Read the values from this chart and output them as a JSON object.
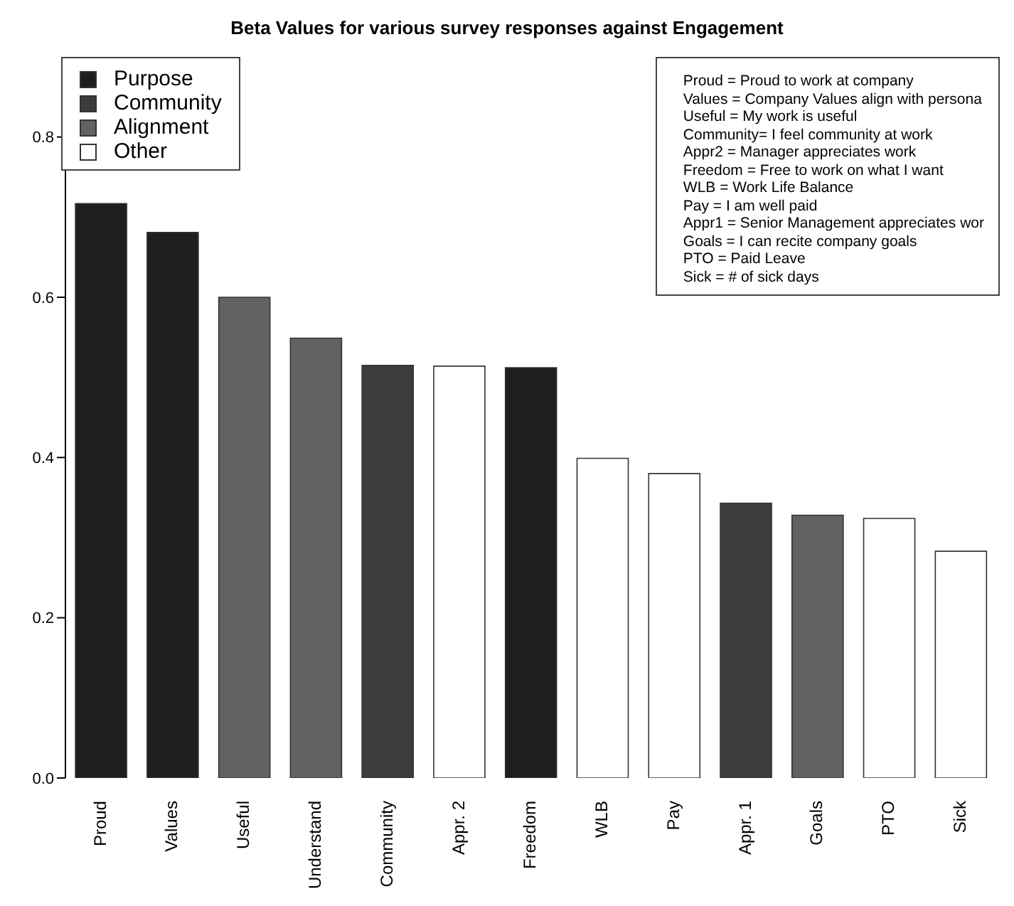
{
  "chart_data": {
    "type": "bar",
    "title": "Beta Values for various survey responses against Engagement",
    "categories": [
      "Proud",
      "Values",
      "Useful",
      "Understand",
      "Community",
      "Appr. 2",
      "Freedom",
      "WLB",
      "Pay",
      "Appr. 1",
      "Goals",
      "PTO",
      "Sick"
    ],
    "stacked": true,
    "series": [
      {
        "name": "Purpose",
        "color": "#1e1e1e",
        "values": [
          0.717,
          0.681,
          null,
          null,
          null,
          null,
          0.512,
          null,
          null,
          null,
          null,
          null,
          null
        ]
      },
      {
        "name": "Community",
        "color": "#3c3c3c",
        "values": [
          null,
          null,
          null,
          null,
          0.515,
          null,
          null,
          null,
          null,
          0.343,
          null,
          null,
          null
        ]
      },
      {
        "name": "Alignment",
        "color": "#626262",
        "values": [
          null,
          null,
          0.6,
          0.549,
          null,
          null,
          null,
          null,
          null,
          null,
          0.328,
          null,
          null
        ]
      },
      {
        "name": "Other",
        "color": "#ffffff",
        "values": [
          null,
          null,
          null,
          null,
          null,
          0.514,
          null,
          0.399,
          0.38,
          null,
          null,
          0.324,
          0.283
        ]
      }
    ],
    "ylim": [
      0,
      0.9
    ],
    "yticks": [
      {
        "value": 0,
        "label": "0.0"
      },
      {
        "value": 0.2,
        "label": "0.2"
      },
      {
        "value": 0.4,
        "label": "0.4"
      },
      {
        "value": 0.6,
        "label": "0.6"
      },
      {
        "value": 0.8,
        "label": "0.8"
      }
    ],
    "legend": "top left",
    "grid": false,
    "annotations": [
      "Proud = Proud to work at company",
      "Values = Company Values align with persona",
      "Useful = My work is useful",
      "Community= I feel community at work",
      "Appr2 = Manager appreciates work",
      "Freedom = Free to work on what I want",
      "WLB = Work Life Balance",
      "Pay = I am well paid",
      "Appr1 = Senior Management appreciates wor",
      "Goals = I can recite company goals",
      "PTO = Paid Leave",
      "Sick = # of sick days"
    ]
  }
}
